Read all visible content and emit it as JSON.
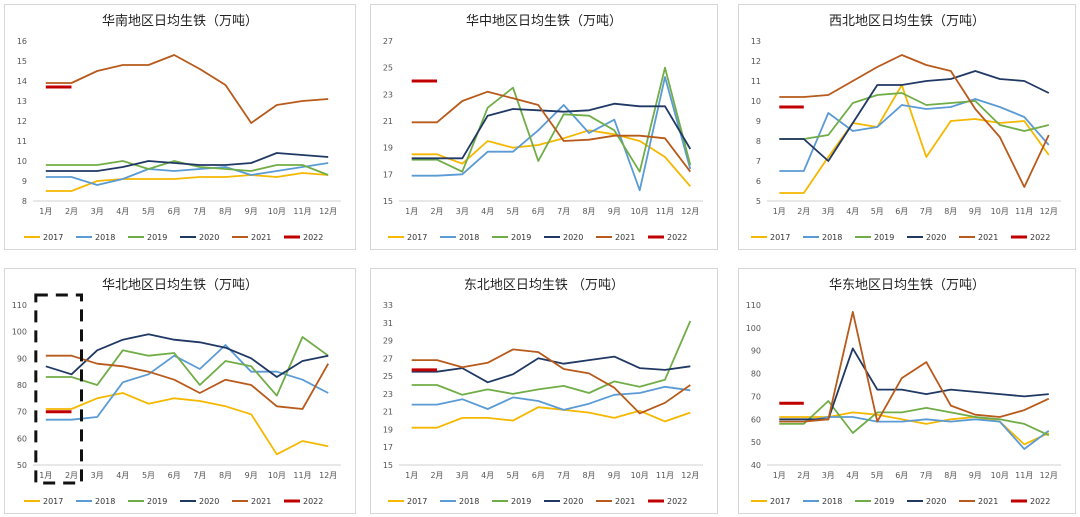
{
  "months": [
    "1月",
    "2月",
    "3月",
    "4月",
    "5月",
    "6月",
    "7月",
    "8月",
    "9月",
    "10月",
    "11月",
    "12月"
  ],
  "colors": {
    "2017": "#f5b800",
    "2018": "#5b9bd5",
    "2019": "#70ad47",
    "2020": "#203864",
    "2021": "#b85a1b",
    "2022": "#c00000"
  },
  "chart_data": [
    {
      "type": "line",
      "title": "华南地区日均生铁（万吨）",
      "ylim": [
        8,
        16
      ],
      "yticks": [
        8,
        9,
        10,
        11,
        12,
        13,
        14,
        15,
        16
      ],
      "series": [
        {
          "name": "2017",
          "values": [
            8.5,
            8.5,
            9.0,
            9.1,
            9.1,
            9.1,
            9.2,
            9.2,
            9.3,
            9.2,
            9.4,
            9.3
          ]
        },
        {
          "name": "2018",
          "values": [
            9.2,
            9.2,
            8.8,
            9.1,
            9.6,
            9.5,
            9.6,
            9.7,
            9.3,
            9.5,
            9.7,
            9.9
          ]
        },
        {
          "name": "2019",
          "values": [
            9.8,
            9.8,
            9.8,
            10.0,
            9.6,
            10.0,
            9.7,
            9.6,
            9.5,
            9.8,
            9.8,
            9.3
          ]
        },
        {
          "name": "2020",
          "values": [
            9.5,
            9.5,
            9.5,
            9.7,
            10.0,
            9.9,
            9.8,
            9.8,
            9.9,
            10.4,
            10.3,
            10.2
          ]
        },
        {
          "name": "2021",
          "values": [
            13.9,
            13.9,
            14.5,
            14.8,
            14.8,
            15.3,
            14.6,
            13.8,
            11.9,
            12.8,
            13.0,
            13.1
          ]
        },
        {
          "name": "2022",
          "values": [
            13.7,
            13.7
          ]
        }
      ]
    },
    {
      "type": "line",
      "title": "华中地区日均生铁（万吨）",
      "ylim": [
        15,
        27
      ],
      "yticks": [
        15,
        17,
        19,
        21,
        23,
        25,
        27
      ],
      "series": [
        {
          "name": "2017",
          "values": [
            18.5,
            18.5,
            17.8,
            19.5,
            19.0,
            19.2,
            19.7,
            20.3,
            20.0,
            19.5,
            18.3,
            16.1
          ]
        },
        {
          "name": "2018",
          "values": [
            16.9,
            16.9,
            17.0,
            18.7,
            18.7,
            20.3,
            22.2,
            20.1,
            21.1,
            15.8,
            24.3,
            17.4
          ]
        },
        {
          "name": "2019",
          "values": [
            18.1,
            18.1,
            17.2,
            22.0,
            23.5,
            18.0,
            21.5,
            21.4,
            20.3,
            17.2,
            25.0,
            17.7
          ]
        },
        {
          "name": "2020",
          "values": [
            18.2,
            18.2,
            18.2,
            21.4,
            21.9,
            21.8,
            21.7,
            21.8,
            22.3,
            22.1,
            22.1,
            18.9
          ]
        },
        {
          "name": "2021",
          "values": [
            20.9,
            20.9,
            22.5,
            23.2,
            22.7,
            22.2,
            19.5,
            19.6,
            19.9,
            19.9,
            19.7,
            17.2
          ]
        },
        {
          "name": "2022",
          "values": [
            24.0,
            24.0
          ]
        }
      ]
    },
    {
      "type": "line",
      "title": "西北地区日均生铁（万吨）",
      "ylim": [
        5,
        13
      ],
      "yticks": [
        5,
        6,
        7,
        8,
        9,
        10,
        11,
        12,
        13
      ],
      "series": [
        {
          "name": "2017",
          "values": [
            5.4,
            5.4,
            7.2,
            8.9,
            8.7,
            10.8,
            7.2,
            9.0,
            9.1,
            8.9,
            9.0,
            7.3
          ]
        },
        {
          "name": "2018",
          "values": [
            6.5,
            6.5,
            9.4,
            8.5,
            8.7,
            9.8,
            9.6,
            9.7,
            10.1,
            9.7,
            9.2,
            7.8
          ]
        },
        {
          "name": "2019",
          "values": [
            8.1,
            8.1,
            8.3,
            9.9,
            10.3,
            10.4,
            9.8,
            9.9,
            10.0,
            8.8,
            8.5,
            8.8
          ]
        },
        {
          "name": "2020",
          "values": [
            8.1,
            8.1,
            7.0,
            8.9,
            10.8,
            10.8,
            11.0,
            11.1,
            11.5,
            11.1,
            11.0,
            10.4
          ]
        },
        {
          "name": "2021",
          "values": [
            10.2,
            10.2,
            10.3,
            11.0,
            11.7,
            12.3,
            11.8,
            11.5,
            9.6,
            8.2,
            5.7,
            8.3
          ]
        },
        {
          "name": "2022",
          "values": [
            9.7,
            9.7
          ]
        }
      ]
    },
    {
      "type": "line",
      "title": "华北地区日均生铁（万吨）",
      "ylim": [
        50,
        110
      ],
      "yticks": [
        50,
        60,
        70,
        80,
        90,
        100,
        110
      ],
      "series": [
        {
          "name": "2017",
          "values": [
            71,
            71,
            75,
            77,
            73,
            75,
            74,
            72,
            69,
            54,
            59,
            57
          ]
        },
        {
          "name": "2018",
          "values": [
            67,
            67,
            68,
            81,
            84,
            91,
            86,
            95,
            85,
            85,
            82,
            77
          ]
        },
        {
          "name": "2019",
          "values": [
            83,
            83,
            80,
            93,
            91,
            92,
            80,
            89,
            87,
            76,
            98,
            91
          ]
        },
        {
          "name": "2020",
          "values": [
            87,
            84,
            93,
            97,
            99,
            97,
            96,
            94,
            90,
            83,
            89,
            91
          ]
        },
        {
          "name": "2021",
          "values": [
            91,
            91,
            88,
            87,
            85,
            82,
            77,
            82,
            80,
            72,
            71,
            88
          ]
        },
        {
          "name": "2022",
          "values": [
            70,
            70
          ]
        }
      ]
    },
    {
      "type": "line",
      "title": "东北地区日均生铁 （万吨）",
      "ylim": [
        15,
        33
      ],
      "yticks": [
        15,
        17,
        19,
        21,
        23,
        25,
        27,
        29,
        31,
        33
      ],
      "series": [
        {
          "name": "2017",
          "values": [
            19.2,
            19.2,
            20.3,
            20.3,
            20.0,
            21.5,
            21.2,
            20.9,
            20.3,
            21.1,
            19.9,
            20.9
          ]
        },
        {
          "name": "2018",
          "values": [
            21.8,
            21.8,
            22.4,
            21.3,
            22.6,
            22.2,
            21.2,
            21.9,
            22.9,
            23.1,
            23.8,
            23.4
          ]
        },
        {
          "name": "2019",
          "values": [
            24.0,
            24.0,
            22.9,
            23.5,
            23.0,
            23.5,
            23.9,
            23.1,
            24.4,
            23.8,
            24.6,
            31.2
          ]
        },
        {
          "name": "2020",
          "values": [
            25.5,
            25.5,
            25.9,
            24.3,
            25.2,
            27.0,
            26.4,
            26.8,
            27.2,
            25.9,
            25.7,
            26.1
          ]
        },
        {
          "name": "2021",
          "values": [
            26.8,
            26.8,
            26.0,
            26.5,
            28.0,
            27.7,
            25.8,
            25.3,
            23.7,
            20.8,
            22.0,
            24.0
          ]
        },
        {
          "name": "2022",
          "values": [
            25.7,
            25.7
          ]
        }
      ]
    },
    {
      "type": "line",
      "title": "华东地区日均生铁（万吨）",
      "ylim": [
        40,
        110
      ],
      "yticks": [
        40,
        50,
        60,
        70,
        80,
        90,
        100,
        110
      ],
      "series": [
        {
          "name": "2017",
          "values": [
            61,
            61,
            61,
            63,
            62,
            60,
            58,
            60,
            61,
            59,
            49,
            54
          ]
        },
        {
          "name": "2018",
          "values": [
            59,
            59,
            61,
            61,
            59,
            59,
            60,
            59,
            60,
            59,
            47,
            55
          ]
        },
        {
          "name": "2019",
          "values": [
            58,
            58,
            68,
            54,
            63,
            63,
            65,
            63,
            61,
            60,
            58,
            53
          ]
        },
        {
          "name": "2020",
          "values": [
            60,
            60,
            60,
            91,
            73,
            73,
            71,
            73,
            72,
            71,
            70,
            71
          ]
        },
        {
          "name": "2021",
          "values": [
            59,
            59,
            60,
            107,
            59,
            78,
            85,
            66,
            62,
            61,
            64,
            69
          ]
        },
        {
          "name": "2022",
          "values": [
            67,
            67
          ]
        }
      ]
    }
  ]
}
